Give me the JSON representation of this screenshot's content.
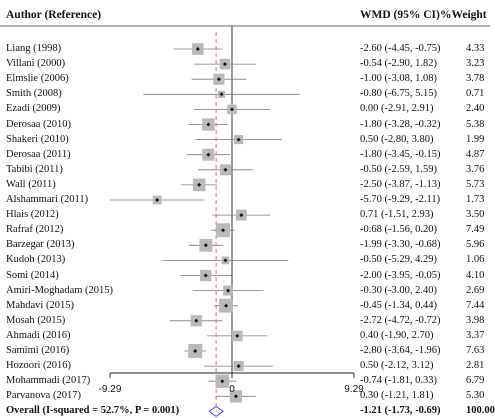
{
  "chart_data": {
    "type": "forest",
    "headers": {
      "study": "Author (Reference)",
      "effect": "WMD (95% CI)",
      "weight": "%Weight"
    },
    "studies": [
      {
        "label": "Liang (1998)",
        "ci_text": "-2.60 (-4.45, -0.75)",
        "weight_text": "4.33",
        "est": -2.6,
        "lo": -4.45,
        "hi": -0.75,
        "w": 4.33
      },
      {
        "label": "Villani (2000)",
        "ci_text": "-0.54 (-2.90, 1.82)",
        "weight_text": "3.23",
        "est": -0.54,
        "lo": -2.9,
        "hi": 1.82,
        "w": 3.23
      },
      {
        "label": "Elmslie (2006)",
        "ci_text": "-1.00 (-3.08, 1.08)",
        "weight_text": "3.78",
        "est": -1.0,
        "lo": -3.08,
        "hi": 1.08,
        "w": 3.78
      },
      {
        "label": "Smith (2008)",
        "ci_text": "-0.80 (-6.75, 5.15)",
        "weight_text": "0.71",
        "est": -0.8,
        "lo": -6.75,
        "hi": 5.15,
        "w": 0.71
      },
      {
        "label": "Ezadi (2009)",
        "ci_text": "0.00 (-2.91, 2.91)",
        "weight_text": "2.40",
        "est": 0.0,
        "lo": -2.91,
        "hi": 2.91,
        "w": 2.4
      },
      {
        "label": "Derosaa (2010)",
        "ci_text": "-1.80 (-3.28, -0.32)",
        "weight_text": "5.38",
        "est": -1.8,
        "lo": -3.28,
        "hi": -0.32,
        "w": 5.38
      },
      {
        "label": "Shakeri (2010)",
        "ci_text": "0.50 (-2.80, 3.80)",
        "weight_text": "1.99",
        "est": 0.5,
        "lo": -2.8,
        "hi": 3.8,
        "w": 1.99
      },
      {
        "label": "Derosaa (2011)",
        "ci_text": "-1.80 (-3.45, -0.15)",
        "weight_text": "4.87",
        "est": -1.8,
        "lo": -3.45,
        "hi": -0.15,
        "w": 4.87
      },
      {
        "label": "Tabibi (2011)",
        "ci_text": "-0.50 (-2.59, 1.59)",
        "weight_text": "3.76",
        "est": -0.5,
        "lo": -2.59,
        "hi": 1.59,
        "w": 3.76
      },
      {
        "label": "Wall (2011)",
        "ci_text": "-2.50 (-3.87, -1.13)",
        "weight_text": "5.73",
        "est": -2.5,
        "lo": -3.87,
        "hi": -1.13,
        "w": 5.73
      },
      {
        "label": "Alshammari (2011)",
        "ci_text": "-5.70 (-9.29, -2.11)",
        "weight_text": "1.73",
        "est": -5.7,
        "lo": -9.29,
        "hi": -2.11,
        "w": 1.73
      },
      {
        "label": "Hlais (2012)",
        "ci_text": "0.71 (-1.51, 2.93)",
        "weight_text": "3.50",
        "est": 0.71,
        "lo": -1.51,
        "hi": 2.93,
        "w": 3.5
      },
      {
        "label": "Rafraf (2012)",
        "ci_text": "-0.68 (-1.56, 0.20)",
        "weight_text": "7.49",
        "est": -0.68,
        "lo": -1.56,
        "hi": 0.2,
        "w": 7.49
      },
      {
        "label": "Barzegar (2013)",
        "ci_text": "-1.99 (-3.30, -0.68)",
        "weight_text": "5.96",
        "est": -1.99,
        "lo": -3.3,
        "hi": -0.68,
        "w": 5.96
      },
      {
        "label": "Kudoh (2013)",
        "ci_text": "-0.50 (-5.29, 4.29)",
        "weight_text": "1.06",
        "est": -0.5,
        "lo": -5.29,
        "hi": 4.29,
        "w": 1.06
      },
      {
        "label": "Somi (2014)",
        "ci_text": "-2.00 (-3.95, -0.05)",
        "weight_text": "4.10",
        "est": -2.0,
        "lo": -3.95,
        "hi": -0.05,
        "w": 4.1
      },
      {
        "label": "Amiri-Moghadam (2015)",
        "ci_text": "-0.30 (-3.00, 2.40)",
        "weight_text": "2.69",
        "est": -0.3,
        "lo": -3.0,
        "hi": 2.4,
        "w": 2.69
      },
      {
        "label": "Mahdavi (2015)",
        "ci_text": "-0.45 (-1.34, 0.44)",
        "weight_text": "7.44",
        "est": -0.45,
        "lo": -1.34,
        "hi": 0.44,
        "w": 7.44
      },
      {
        "label": "Mosah (2015)",
        "ci_text": "-2.72 (-4.72, -0.72)",
        "weight_text": "3.98",
        "est": -2.72,
        "lo": -4.72,
        "hi": -0.72,
        "w": 3.98
      },
      {
        "label": "Ahmadi (2016)",
        "ci_text": "0.40 (-1.90, 2.70)",
        "weight_text": "3.37",
        "est": 0.4,
        "lo": -1.9,
        "hi": 2.7,
        "w": 3.37
      },
      {
        "label": "Samimi (2016)",
        "ci_text": "-2.80 (-3.64, -1.96)",
        "weight_text": "7.63",
        "est": -2.8,
        "lo": -3.64,
        "hi": -1.96,
        "w": 7.63
      },
      {
        "label": "Hozoori (2016)",
        "ci_text": "0.50 (-2.12, 3.12)",
        "weight_text": "2.81",
        "est": 0.5,
        "lo": -2.12,
        "hi": 3.12,
        "w": 2.81
      },
      {
        "label": "Mohammadi (2017)",
        "ci_text": "-0.74 (-1.81, 0.33)",
        "weight_text": "6.79",
        "est": -0.74,
        "lo": -1.81,
        "hi": 0.33,
        "w": 6.79
      },
      {
        "label": "Parvanova (2017)",
        "ci_text": "0.30 (-1.21, 1.81)",
        "weight_text": "5.30",
        "est": 0.3,
        "lo": -1.21,
        "hi": 1.81,
        "w": 5.3
      }
    ],
    "overall": {
      "label": "Overall (I-squared = 52.7%, P = 0.001)",
      "ci_text": "-1.21 (-1.73, -0.69)",
      "weight_text": "100.00",
      "est": -1.21,
      "lo": -1.73,
      "hi": -0.69
    },
    "xlim": [
      -9.29,
      9.29
    ],
    "x_ticks": [
      "-9.29",
      "0",
      "9.29"
    ],
    "x_tick_values": [
      -9.29,
      0,
      9.29
    ],
    "null_line": 0,
    "colors": {
      "box": "#b9b9b9",
      "line": "#7a7a7a",
      "dashed": "#e06060",
      "diamond": "#4444ff"
    }
  }
}
